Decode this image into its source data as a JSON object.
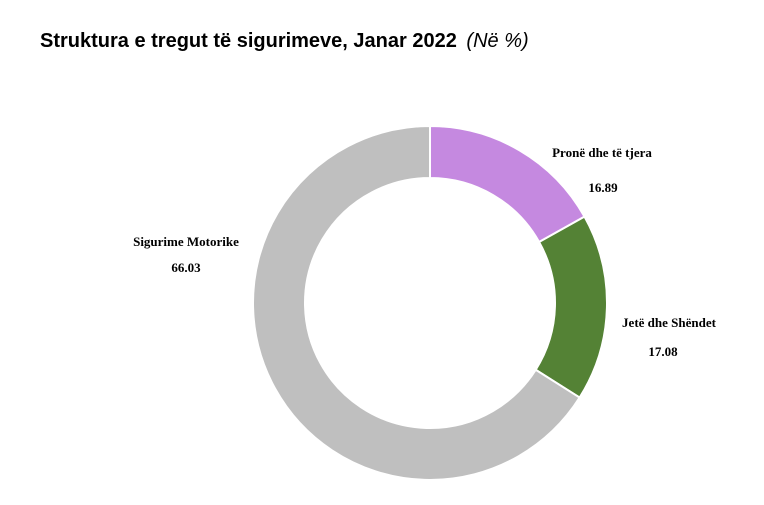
{
  "chart_data": {
    "type": "pie",
    "title": "Struktura e tregut të sigurimeve, Janar 2022",
    "title_unit": "(Në %)",
    "donut": true,
    "slices": [
      {
        "name": "Pronë dhe të tjera",
        "value": 16.89,
        "value_label": "16.89",
        "color": "#c589e0"
      },
      {
        "name": "Jetë dhe Shëndet",
        "value": 17.08,
        "value_label": "17.08",
        "color": "#548235"
      },
      {
        "name": "Sigurime Motorike",
        "value": 66.03,
        "value_label": "66.03",
        "color": "#bfbfbf"
      }
    ],
    "start_angle": "12 o'clock",
    "direction": "clockwise",
    "legend": "none"
  }
}
